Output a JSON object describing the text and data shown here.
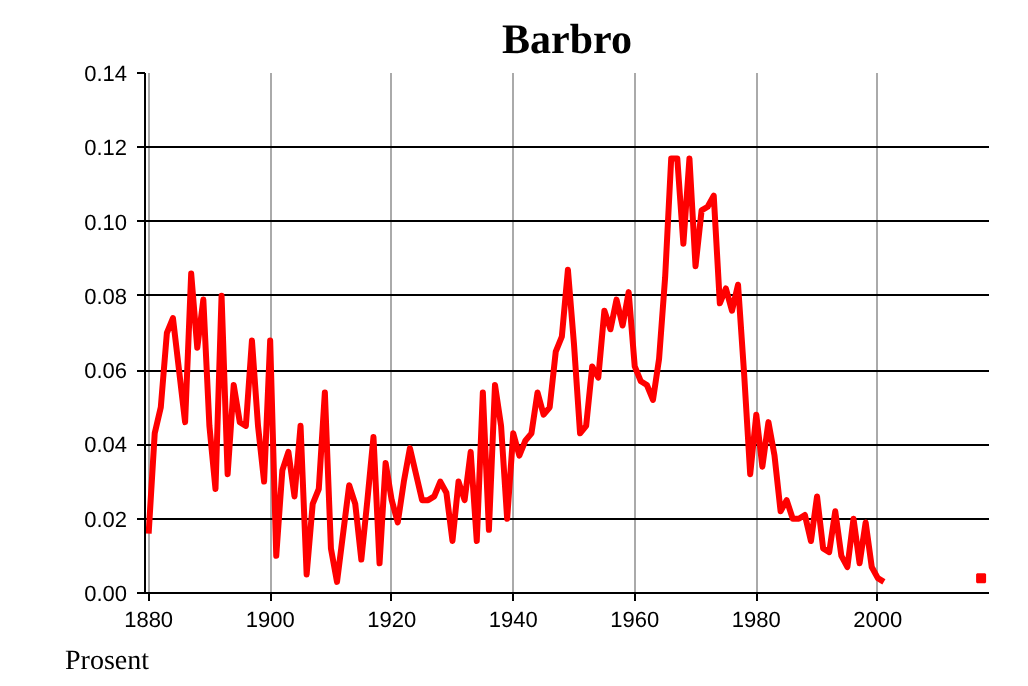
{
  "chart_data": {
    "type": "line",
    "title": "Barbro",
    "ylabel": "Prosent",
    "xlim": [
      1879.4,
      2018.3
    ],
    "xticks": [
      1880,
      1900,
      1920,
      1940,
      1960,
      1980,
      2000
    ],
    "ylim": [
      0,
      0.14
    ],
    "yticks": [
      {
        "value": 0,
        "label": "0.00"
      },
      {
        "value": 0.02,
        "label": "0.02"
      },
      {
        "value": 0.04,
        "label": "0.04"
      },
      {
        "value": 0.06,
        "label": "0.06"
      },
      {
        "value": 0.08,
        "label": "0.08"
      },
      {
        "value": 0.1,
        "label": "0.10"
      },
      {
        "value": 0.12,
        "label": "0.12"
      },
      {
        "value": 0.14,
        "label": "0.14"
      }
    ],
    "grid": true,
    "series": [
      {
        "color": "#ff0000",
        "x": [
          1880,
          1881,
          1882,
          1883,
          1884,
          1885,
          1886,
          1887,
          1888,
          1889,
          1890,
          1891,
          1892,
          1893,
          1894,
          1895,
          1896,
          1897,
          1898,
          1899,
          1900,
          1901,
          1902,
          1903,
          1904,
          1905,
          1906,
          1907,
          1908,
          1909,
          1910,
          1911,
          1912,
          1913,
          1914,
          1915,
          1916,
          1917,
          1918,
          1919,
          1920,
          1921,
          1922,
          1923,
          1924,
          1925,
          1926,
          1927,
          1928,
          1929,
          1930,
          1931,
          1932,
          1933,
          1934,
          1935,
          1936,
          1937,
          1938,
          1939,
          1940,
          1941,
          1942,
          1943,
          1944,
          1945,
          1946,
          1947,
          1948,
          1949,
          1950,
          1951,
          1952,
          1953,
          1954,
          1955,
          1956,
          1957,
          1958,
          1959,
          1960,
          1961,
          1962,
          1963,
          1964,
          1965,
          1966,
          1967,
          1968,
          1969,
          1970,
          1971,
          1972,
          1973,
          1974,
          1975,
          1976,
          1977,
          1978,
          1979,
          1980,
          1981,
          1982,
          1983,
          1984,
          1985,
          1986,
          1987,
          1988,
          1989,
          1990,
          1991,
          1992,
          1993,
          1994,
          1995,
          1996,
          1997,
          1998,
          1999,
          2000,
          2001
        ],
        "values": [
          0.016,
          0.043,
          0.05,
          0.07,
          0.074,
          0.06,
          0.046,
          0.086,
          0.066,
          0.079,
          0.045,
          0.028,
          0.08,
          0.032,
          0.056,
          0.046,
          0.045,
          0.068,
          0.045,
          0.03,
          0.068,
          0.01,
          0.033,
          0.038,
          0.026,
          0.045,
          0.005,
          0.024,
          0.028,
          0.054,
          0.012,
          0.003,
          0.016,
          0.029,
          0.024,
          0.009,
          0.025,
          0.042,
          0.008,
          0.035,
          0.025,
          0.019,
          0.03,
          0.039,
          0.032,
          0.025,
          0.025,
          0.026,
          0.03,
          0.027,
          0.014,
          0.03,
          0.025,
          0.038,
          0.014,
          0.054,
          0.017,
          0.056,
          0.045,
          0.02,
          0.043,
          0.037,
          0.041,
          0.043,
          0.054,
          0.048,
          0.05,
          0.065,
          0.069,
          0.087,
          0.067,
          0.043,
          0.045,
          0.061,
          0.058,
          0.076,
          0.071,
          0.079,
          0.072,
          0.081,
          0.061,
          0.057,
          0.056,
          0.052,
          0.063,
          0.085,
          0.117,
          0.117,
          0.094,
          0.117,
          0.088,
          0.103,
          0.104,
          0.107,
          0.078,
          0.082,
          0.076,
          0.083,
          0.059,
          0.032,
          0.048,
          0.034,
          0.046,
          0.037,
          0.022,
          0.025,
          0.02,
          0.02,
          0.021,
          0.014,
          0.026,
          0.012,
          0.011,
          0.022,
          0.01,
          0.007,
          0.02,
          0.008,
          0.019,
          0.007,
          0.004,
          0.003
        ]
      },
      {
        "type": "scatter",
        "marker": "square",
        "color": "#ff0000",
        "x": [
          2017
        ],
        "values": [
          0.004
        ]
      }
    ]
  }
}
